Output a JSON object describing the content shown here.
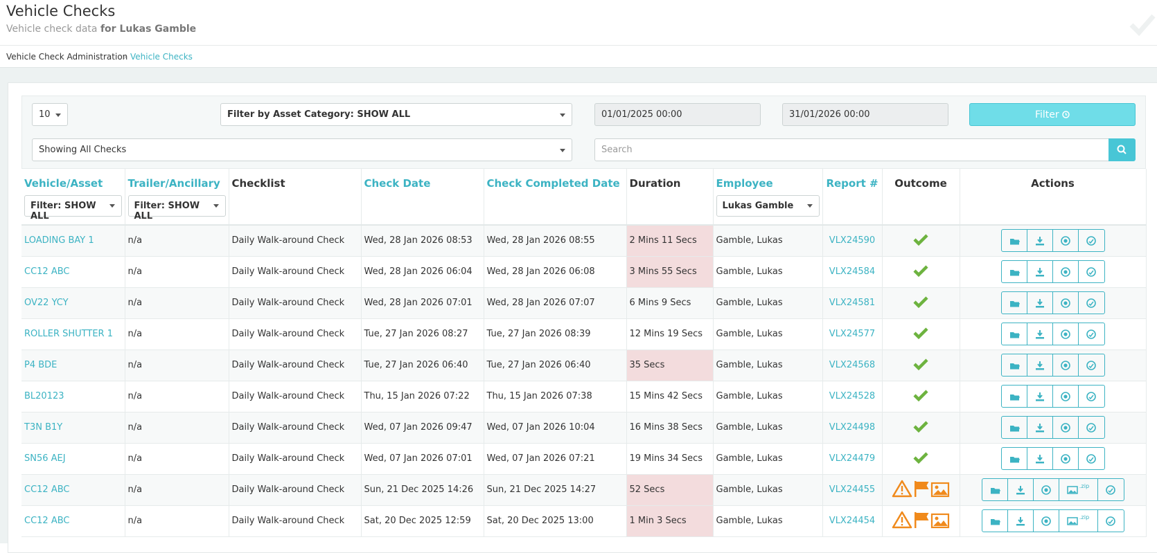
{
  "header": {
    "title": "Vehicle Checks",
    "subtitle": "Vehicle check data",
    "subtitle_bold": "for Lukas Gamble"
  },
  "breadcrumb": [
    "Vehicle Check Administration",
    "Vehicle Checks"
  ],
  "filters": {
    "page_size": "10",
    "asset_category": "Filter by Asset Category: SHOW ALL",
    "date_from": "01/01/2025 00:00",
    "date_to": "31/01/2026 00:00",
    "filter_button": "Filter",
    "check_scope": "Showing All Checks",
    "search_placeholder": "Search"
  },
  "table": {
    "columns": [
      {
        "label": "Vehicle/Asset",
        "sortable": true,
        "filter": "Filter: SHOW ALL"
      },
      {
        "label": "Trailer/Ancillary",
        "sortable": true,
        "filter": "Filter: SHOW ALL"
      },
      {
        "label": "Checklist",
        "sortable": false
      },
      {
        "label": "Check Date",
        "sortable": true
      },
      {
        "label": "Check Completed Date",
        "sortable": true
      },
      {
        "label": "Duration",
        "sortable": false
      },
      {
        "label": "Employee",
        "sortable": true,
        "filter": "Lukas Gamble"
      },
      {
        "label": "Report #",
        "sortable": true
      },
      {
        "label": "Outcome",
        "sortable": false
      },
      {
        "label": "Actions",
        "sortable": false
      }
    ],
    "zip_label": ".zip",
    "rows": [
      {
        "cells": [
          "LOADING BAY 1",
          "n/a",
          "Daily Walk-around Check",
          "Wed, 28 Jan 2026 08:53",
          "Wed, 28 Jan 2026 08:55",
          "2 Mins 11 Secs",
          "Gamble, Lukas",
          "VLX24590"
        ],
        "short_duration": true,
        "outcome": "pass"
      },
      {
        "cells": [
          "CC12 ABC",
          "n/a",
          "Daily Walk-around Check",
          "Wed, 28 Jan 2026 06:04",
          "Wed, 28 Jan 2026 06:08",
          "3 Mins 55 Secs",
          "Gamble, Lukas",
          "VLX24584"
        ],
        "short_duration": true,
        "outcome": "pass"
      },
      {
        "cells": [
          "OV22 YCY",
          "n/a",
          "Daily Walk-around Check",
          "Wed, 28 Jan 2026 07:01",
          "Wed, 28 Jan 2026 07:07",
          "6 Mins 9 Secs",
          "Gamble, Lukas",
          "VLX24581"
        ],
        "short_duration": false,
        "outcome": "pass"
      },
      {
        "cells": [
          "ROLLER SHUTTER 1",
          "n/a",
          "Daily Walk-around Check",
          "Tue, 27 Jan 2026 08:27",
          "Tue, 27 Jan 2026 08:39",
          "12 Mins 19 Secs",
          "Gamble, Lukas",
          "VLX24577"
        ],
        "short_duration": false,
        "outcome": "pass"
      },
      {
        "cells": [
          "P4 BDE",
          "n/a",
          "Daily Walk-around Check",
          "Tue, 27 Jan 2026 06:40",
          "Tue, 27 Jan 2026 06:40",
          "35 Secs",
          "Gamble, Lukas",
          "VLX24568"
        ],
        "short_duration": true,
        "outcome": "pass"
      },
      {
        "cells": [
          "BL20123",
          "n/a",
          "Daily Walk-around Check",
          "Thu, 15 Jan 2026 07:22",
          "Thu, 15 Jan 2026 07:38",
          "15 Mins 42 Secs",
          "Gamble, Lukas",
          "VLX24528"
        ],
        "short_duration": false,
        "outcome": "pass"
      },
      {
        "cells": [
          "T3N B1Y",
          "n/a",
          "Daily Walk-around Check",
          "Wed, 07 Jan 2026 09:47",
          "Wed, 07 Jan 2026 10:04",
          "16 Mins 38 Secs",
          "Gamble, Lukas",
          "VLX24498"
        ],
        "short_duration": false,
        "outcome": "pass"
      },
      {
        "cells": [
          "SN56 AEJ",
          "n/a",
          "Daily Walk-around Check",
          "Wed, 07 Jan 2026 07:01",
          "Wed, 07 Jan 2026 07:21",
          "19 Mins 34 Secs",
          "Gamble, Lukas",
          "VLX24479"
        ],
        "short_duration": false,
        "outcome": "pass"
      },
      {
        "cells": [
          "CC12 ABC",
          "n/a",
          "Daily Walk-around Check",
          "Sun, 21 Dec 2025 14:26",
          "Sun, 21 Dec 2025 14:27",
          "52 Secs",
          "Gamble, Lukas",
          "VLX24455"
        ],
        "short_duration": true,
        "outcome": "defects"
      },
      {
        "cells": [
          "CC12 ABC",
          "n/a",
          "Daily Walk-around Check",
          "Sat, 20 Dec 2025 12:59",
          "Sat, 20 Dec 2025 13:00",
          "1 Min 3 Secs",
          "Gamble, Lukas",
          "VLX24454"
        ],
        "short_duration": true,
        "outcome": "defects"
      }
    ]
  }
}
